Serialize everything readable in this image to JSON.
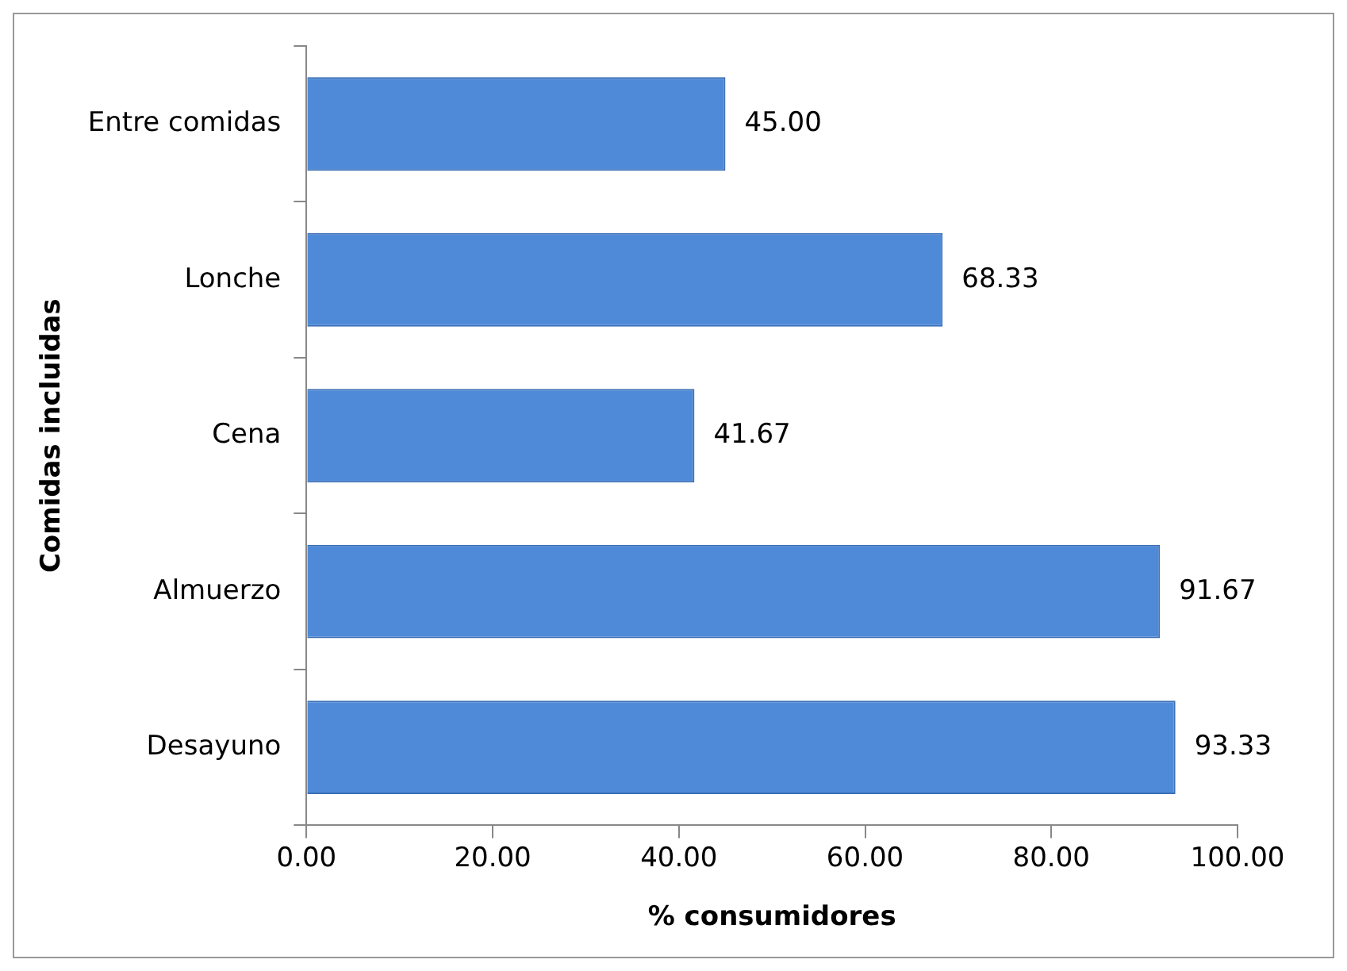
{
  "chart_data": {
    "type": "bar",
    "orientation": "horizontal",
    "categories": [
      "Entre comidas",
      "Lonche",
      "Cena",
      "Almuerzo",
      "Desayuno"
    ],
    "values": [
      45,
      68.33,
      41.67,
      91.67,
      93.33
    ],
    "value_labels": [
      "45.00",
      "68.33",
      "41.67",
      "91.67",
      "93.33"
    ],
    "color": "#4f8ad8",
    "xlim": [
      0,
      100
    ],
    "xticks": [
      {
        "value": 0,
        "label": "0.00"
      },
      {
        "value": 20,
        "label": "20.00"
      },
      {
        "value": 40,
        "label": "40.00"
      },
      {
        "value": 60,
        "label": "60.00"
      },
      {
        "value": 80,
        "label": "80.00"
      },
      {
        "value": 100,
        "label": "100.00"
      }
    ],
    "xlabel": "% consumidores",
    "ylabel": "Comidas incluidas",
    "grid": false,
    "legend": false
  }
}
